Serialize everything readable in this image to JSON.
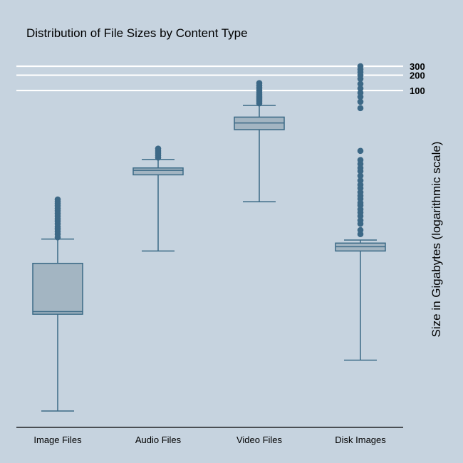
{
  "chart_data": {
    "type": "box",
    "title": "Distribution of File Sizes by Content Type",
    "xlabel": "",
    "ylabel": "Size in Gigabytes (logarithmic scale)",
    "y_scale": "log",
    "grid": false,
    "categories": [
      "Image Files",
      "Audio Files",
      "Video Files",
      "Disk Images"
    ],
    "reference_lines": [
      {
        "value": 100,
        "label": "100"
      },
      {
        "value": 200,
        "label": "200"
      },
      {
        "value": 300,
        "label": "300"
      }
    ],
    "boxes": [
      {
        "category": "Image Files",
        "whisker_low": 5e-05,
        "q1": 0.004,
        "median": 0.0045,
        "q3": 0.04,
        "whisker_high": 0.12,
        "outliers": [
          0.13,
          0.15,
          0.17,
          0.19,
          0.21,
          0.24,
          0.27,
          0.3,
          0.34,
          0.38,
          0.43,
          0.48,
          0.54,
          0.6,
          0.66,
          0.72
        ]
      },
      {
        "category": "Audio Files",
        "whisker_low": 0.07,
        "q1": 2.2,
        "median": 2.7,
        "q3": 3.0,
        "whisker_high": 4.4,
        "outliers": [
          4.8,
          5.3,
          5.9,
          6.5,
          7.2
        ]
      },
      {
        "category": "Video Files",
        "whisker_low": 0.65,
        "q1": 17,
        "median": 23,
        "q3": 30,
        "whisker_high": 51,
        "outliers": [
          56,
          62,
          68,
          74,
          82,
          90,
          100,
          112,
          125,
          140
        ]
      },
      {
        "category": "Disk Images",
        "whisker_low": 0.0005,
        "q1": 0.07,
        "median": 0.085,
        "q3": 0.1,
        "whisker_high": 0.115,
        "outliers": [
          0.15,
          0.18,
          0.24,
          0.28,
          0.34,
          0.4,
          0.46,
          0.55,
          0.62,
          0.74,
          0.85,
          1.0,
          1.2,
          1.4,
          1.7,
          2.1,
          2.6,
          3.0,
          3.6,
          4.3,
          6.5,
          45,
          60,
          75,
          90,
          110,
          135,
          170,
          200,
          230,
          260,
          300
        ]
      }
    ]
  }
}
